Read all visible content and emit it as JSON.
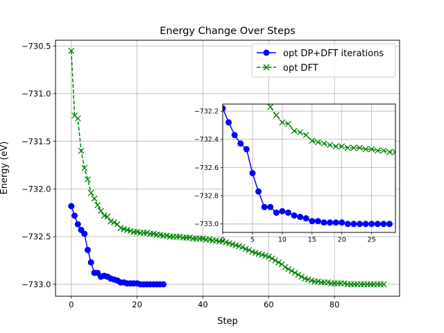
{
  "chart_data": [
    {
      "type": "line",
      "title": "Energy Change Over Steps",
      "xlabel": "Step",
      "ylabel": "Energy (eV)",
      "xlim": [
        -4.8,
        99.8
      ],
      "ylim": [
        -733.125,
        -730.44
      ],
      "xticks": [
        0,
        20,
        40,
        60,
        80
      ],
      "yticks": [
        -733.0,
        -732.5,
        -732.0,
        -731.5,
        -731.0,
        -730.5
      ],
      "xtick_labels": [
        "0",
        "20",
        "40",
        "60",
        "80"
      ],
      "ytick_labels": [
        "−733.0",
        "−732.5",
        "−732.0",
        "−731.5",
        "−731.0",
        "−730.5"
      ],
      "grid": true,
      "legend_position": "upper-right",
      "series": [
        {
          "name": "opt DP+DFT iterations",
          "color": "#0000ff",
          "linestyle": "solid",
          "marker": "circle",
          "x": [
            0,
            1,
            2,
            3,
            4,
            5,
            6,
            7,
            8,
            9,
            10,
            11,
            12,
            13,
            14,
            15,
            16,
            17,
            18,
            19,
            20,
            21,
            22,
            23,
            24,
            25,
            26,
            27,
            28
          ],
          "values": [
            -732.18,
            -732.28,
            -732.37,
            -732.43,
            -732.47,
            -732.64,
            -732.77,
            -732.88,
            -732.88,
            -732.92,
            -732.91,
            -732.92,
            -732.94,
            -732.95,
            -732.96,
            -732.98,
            -732.98,
            -732.99,
            -732.99,
            -732.99,
            -732.99,
            -733.0,
            -733.0,
            -733.0,
            -733.0,
            -733.0,
            -733.0,
            -733.0,
            -733.0
          ]
        },
        {
          "name": "opt DFT",
          "color": "#008000",
          "linestyle": "dashed",
          "marker": "x",
          "x": [
            0,
            1,
            2,
            3,
            4,
            5,
            6,
            7,
            8,
            9,
            10,
            11,
            12,
            13,
            14,
            15,
            16,
            17,
            18,
            19,
            20,
            21,
            22,
            23,
            24,
            25,
            26,
            27,
            28,
            29,
            30,
            31,
            32,
            33,
            34,
            35,
            36,
            37,
            38,
            39,
            40,
            41,
            42,
            43,
            44,
            45,
            46,
            47,
            48,
            49,
            50,
            51,
            52,
            53,
            54,
            55,
            56,
            57,
            58,
            59,
            60,
            61,
            62,
            63,
            64,
            65,
            66,
            67,
            68,
            69,
            70,
            71,
            72,
            73,
            74,
            75,
            76,
            77,
            78,
            79,
            80,
            81,
            82,
            83,
            84,
            85,
            86,
            87,
            88,
            89,
            90,
            91,
            92,
            93,
            94,
            95
          ],
          "values": [
            -730.55,
            -731.23,
            -731.26,
            -731.6,
            -731.78,
            -731.9,
            -732.04,
            -732.1,
            -732.17,
            -732.23,
            -732.28,
            -732.29,
            -732.34,
            -732.35,
            -732.37,
            -732.41,
            -732.42,
            -732.43,
            -732.44,
            -732.45,
            -732.45,
            -732.46,
            -732.46,
            -732.46,
            -732.47,
            -732.47,
            -732.48,
            -732.48,
            -732.49,
            -732.49,
            -732.5,
            -732.5,
            -732.5,
            -732.5,
            -732.51,
            -732.51,
            -732.51,
            -732.52,
            -732.52,
            -732.52,
            -732.52,
            -732.53,
            -732.53,
            -732.54,
            -732.54,
            -732.55,
            -732.55,
            -732.56,
            -732.57,
            -732.58,
            -732.59,
            -732.6,
            -732.61,
            -732.63,
            -732.64,
            -732.66,
            -732.67,
            -732.68,
            -732.69,
            -732.7,
            -732.71,
            -732.73,
            -732.75,
            -732.77,
            -732.79,
            -732.82,
            -732.84,
            -732.86,
            -732.88,
            -732.9,
            -732.92,
            -732.94,
            -732.95,
            -732.96,
            -732.97,
            -732.97,
            -732.98,
            -732.98,
            -732.98,
            -732.99,
            -732.99,
            -732.99,
            -732.99,
            -732.99,
            -733.0,
            -733.0,
            -733.0,
            -733.0,
            -733.0,
            -733.0,
            -733.0,
            -733.0,
            -733.0,
            -733.0,
            -733.0,
            -733.0
          ]
        }
      ]
    },
    {
      "type": "line",
      "title": "",
      "xlabel": "",
      "ylabel": "",
      "xlim": [
        0,
        29
      ],
      "ylim": [
        -733.06,
        -732.15
      ],
      "xticks": [
        0,
        5,
        10,
        15,
        20,
        25
      ],
      "yticks": [
        -733.0,
        -732.8,
        -732.6,
        -732.4,
        -732.2
      ],
      "xtick_labels": [
        "0",
        "5",
        "10",
        "15",
        "20",
        "25"
      ],
      "ytick_labels": [
        "−733.0",
        "−732.8",
        "−732.6",
        "−732.4",
        "−732.2"
      ],
      "grid": true,
      "series_from_main": true
    }
  ]
}
